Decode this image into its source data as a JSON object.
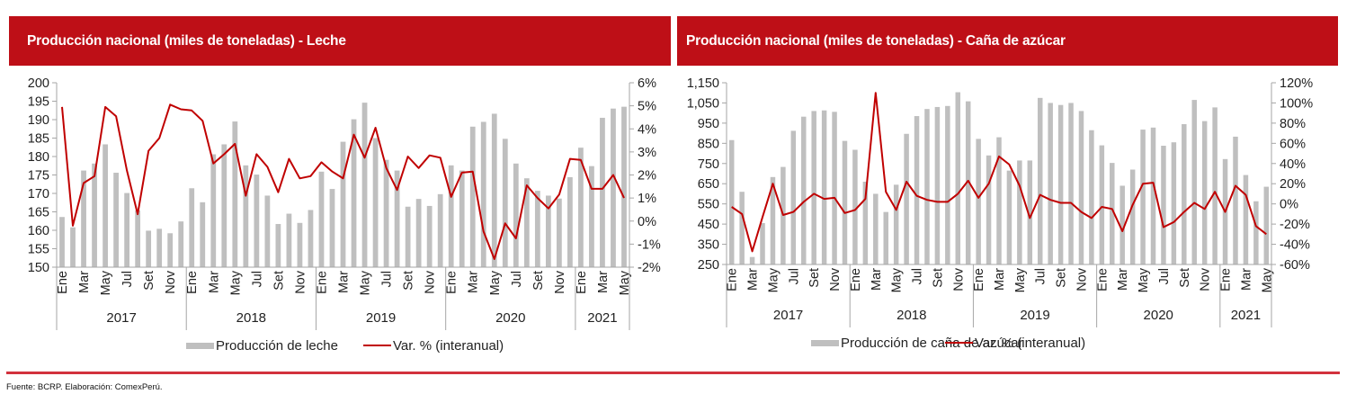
{
  "colors": {
    "header_bg": "#be0f17",
    "bar": "#bfbfbf",
    "line": "#c00000",
    "axis": "#a6a6a6",
    "rule": "#d2323d"
  },
  "footer": {
    "source": "Fuente: BCRP. Elaboración: ComexPerú."
  },
  "chart_data": [
    {
      "type": "bar",
      "title": "Producción nacional (miles de toneladas) - Leche",
      "secondary_type": "line",
      "month_labels": [
        "Ene",
        "Mar",
        "May",
        "Jul",
        "Set",
        "Nov"
      ],
      "years": [
        {
          "label": "2017",
          "months": 12
        },
        {
          "label": "2018",
          "months": 12
        },
        {
          "label": "2019",
          "months": 12
        },
        {
          "label": "2020",
          "months": 12
        },
        {
          "label": "2021",
          "months": 5
        }
      ],
      "left_axis": {
        "min": 150,
        "max": 200,
        "step": 5,
        "ticks": [
          "150",
          "155",
          "160",
          "165",
          "170",
          "175",
          "180",
          "185",
          "190",
          "195",
          "200"
        ]
      },
      "right_axis": {
        "min": -2,
        "max": 6,
        "step": 1,
        "ticks": [
          "-2%",
          "-1%",
          "0%",
          "1%",
          "2%",
          "3%",
          "4%",
          "5%",
          "6%"
        ]
      },
      "legend": {
        "bar": "Producción de leche",
        "line": "Var. % (interanual)",
        "position": "bottom"
      },
      "series": [
        {
          "name": "Producción de leche",
          "axis": "left",
          "type": "bar",
          "values": [
            163.6,
            160.8,
            176.2,
            178.1,
            183.3,
            175.6,
            170.1,
            165.4,
            159.9,
            160.4,
            159.2,
            162.4,
            171.4,
            167.6,
            180.6,
            183.3,
            189.5,
            177.6,
            175.1,
            169.4,
            161.7,
            164.5,
            162.0,
            165.5,
            175.9,
            171.2,
            184.0,
            190.1,
            194.6,
            185.0,
            179.1,
            176.2,
            166.4,
            168.5,
            166.6,
            169.8,
            177.6,
            176.2,
            188.1,
            189.4,
            191.6,
            184.8,
            178.1,
            174.1,
            170.7,
            169.4,
            168.6,
            174.4,
            182.4,
            177.4,
            190.5,
            193.0,
            193.5
          ]
        },
        {
          "name": "Var. % (interanual)",
          "axis": "right",
          "type": "line",
          "values": [
            4.95,
            -0.2,
            1.65,
            1.95,
            4.95,
            4.55,
            2.2,
            0.3,
            3.05,
            3.6,
            5.05,
            4.85,
            4.8,
            4.35,
            2.5,
            2.9,
            3.35,
            1.1,
            2.9,
            2.35,
            1.25,
            2.7,
            1.85,
            1.95,
            2.55,
            2.15,
            1.85,
            3.75,
            2.75,
            4.05,
            2.3,
            1.35,
            2.8,
            2.3,
            2.85,
            2.75,
            1.05,
            2.1,
            2.15,
            -0.45,
            -1.65,
            -0.1,
            -0.75,
            1.55,
            1.0,
            0.55,
            1.15,
            2.7,
            2.65,
            1.4,
            1.4,
            2.0,
            1.0
          ]
        }
      ]
    },
    {
      "type": "bar",
      "title": "Producción nacional (miles de toneladas) - Caña de azúcar",
      "secondary_type": "line",
      "month_labels": [
        "Ene",
        "Mar",
        "May",
        "Jul",
        "Set",
        "Nov"
      ],
      "years": [
        {
          "label": "2017",
          "months": 12
        },
        {
          "label": "2018",
          "months": 12
        },
        {
          "label": "2019",
          "months": 12
        },
        {
          "label": "2020",
          "months": 12
        },
        {
          "label": "2021",
          "months": 5
        }
      ],
      "left_axis": {
        "min": 250,
        "max": 1150,
        "step": 100,
        "ticks": [
          "250",
          "350",
          "450",
          "550",
          "650",
          "750",
          "850",
          "950",
          "1,050",
          "1,150"
        ]
      },
      "right_axis": {
        "min": -60,
        "max": 120,
        "step": 20,
        "ticks": [
          "-60%",
          "-40%",
          "-20%",
          "0%",
          "20%",
          "40%",
          "60%",
          "80%",
          "100%",
          "120%"
        ]
      },
      "legend": {
        "bar": "Producción de caña de azúcar",
        "line": "Var. % (interanual)",
        "position": "bottom"
      },
      "series": [
        {
          "name": "Producción de caña de azúcar",
          "axis": "left",
          "type": "bar",
          "values": [
            866,
            610,
            287,
            455,
            683,
            733,
            912,
            982,
            1010,
            1013,
            1006,
            862,
            818,
            660,
            600,
            510,
            645,
            897,
            985,
            1020,
            1030,
            1035,
            1103,
            1058,
            872,
            790,
            880,
            715,
            765,
            765,
            1075,
            1050,
            1040,
            1050,
            1010,
            915,
            840,
            753,
            640,
            720,
            918,
            928,
            838,
            855,
            945,
            1065,
            960,
            1028,
            772,
            883,
            693,
            563,
            635
          ]
        },
        {
          "name": "Var. % (interanual)",
          "axis": "right",
          "type": "line",
          "values": [
            -3,
            -10,
            -47,
            -13,
            20,
            -11,
            -8,
            2,
            10,
            5,
            6,
            -9,
            -6,
            5,
            110,
            12,
            -6,
            22,
            8,
            4,
            2,
            2,
            10,
            23,
            6,
            20,
            47,
            39,
            18,
            -14,
            9,
            4,
            1,
            1,
            -8,
            -14,
            -3,
            -5,
            -27,
            -1,
            20,
            21,
            -23,
            -18,
            -8,
            1,
            -5,
            12,
            -8,
            18,
            9,
            -22,
            -30
          ]
        }
      ]
    }
  ]
}
